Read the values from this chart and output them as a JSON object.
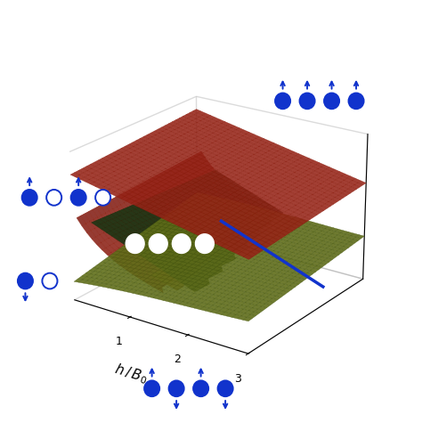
{
  "background_color": "#ffffff",
  "surface_red_color": "#c83020",
  "surface_red_edge": "#8b1a0a",
  "surface_green_color": "#7a8c20",
  "surface_green_edge": "#4a5a10",
  "surface_dark_color": "#2d4a1e",
  "surface_dark_edge": "#1a2a0a",
  "surface_orange_color": "#c87820",
  "blue_color": "#1133cc",
  "xlabel": "h / B_0",
  "xticks": [
    1,
    2,
    3
  ],
  "xticklabels": [
    "1",
    "2",
    "3"
  ],
  "elev": 22,
  "azim": -55
}
